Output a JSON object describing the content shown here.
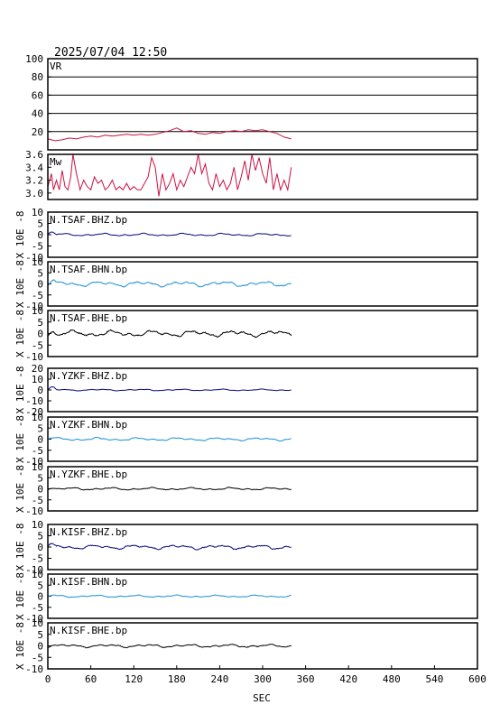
{
  "header": {
    "timestamp": "2025/07/04 12:50"
  },
  "chart_data": {
    "type": "line",
    "xlabel": "SEC",
    "xlim": [
      0,
      600
    ],
    "xticks": [
      0,
      60,
      120,
      180,
      240,
      300,
      360,
      420,
      480,
      540,
      600
    ],
    "xtick_labels": [
      "0",
      "60",
      "120",
      "180",
      "240",
      "300",
      "360",
      "420",
      "480",
      "540",
      "600"
    ],
    "panels": [
      {
        "name": "VR",
        "ylim": [
          0,
          100
        ],
        "yticks": [
          20,
          40,
          60,
          80,
          100
        ],
        "ytick_labels": [
          "20",
          "40",
          "60",
          "80",
          "100"
        ],
        "grid": true,
        "color": "#cc1144",
        "x": [
          0,
          10,
          20,
          30,
          40,
          50,
          60,
          70,
          80,
          90,
          100,
          110,
          120,
          130,
          140,
          150,
          160,
          170,
          180,
          190,
          200,
          210,
          220,
          230,
          240,
          250,
          260,
          270,
          280,
          290,
          300,
          310,
          320,
          330,
          340
        ],
        "y": [
          12,
          10,
          11,
          13,
          12,
          14,
          15,
          14,
          16,
          15,
          16,
          17,
          16,
          17,
          16,
          17,
          19,
          21,
          24,
          20,
          21,
          18,
          17,
          19,
          18,
          20,
          21,
          20,
          22,
          21,
          22,
          20,
          18,
          14,
          12
        ]
      },
      {
        "name": "Mw",
        "ylim": [
          2.9,
          3.6
        ],
        "yticks": [
          3.0,
          3.2,
          3.4,
          3.6
        ],
        "ytick_labels": [
          "3.0",
          "3.2",
          "3.4",
          "3.6"
        ],
        "grid": false,
        "color": "#cc1144",
        "x": [
          0,
          5,
          8,
          12,
          16,
          20,
          24,
          28,
          32,
          35,
          40,
          45,
          50,
          55,
          60,
          65,
          70,
          75,
          80,
          85,
          90,
          95,
          100,
          105,
          110,
          115,
          120,
          125,
          130,
          135,
          140,
          145,
          150,
          155,
          160,
          165,
          170,
          175,
          180,
          185,
          190,
          195,
          200,
          205,
          210,
          215,
          220,
          225,
          230,
          235,
          240,
          245,
          250,
          255,
          260,
          265,
          270,
          275,
          280,
          285,
          290,
          295,
          300,
          305,
          310,
          315,
          320,
          325,
          330,
          335,
          340
        ],
        "y": [
          3.1,
          3.3,
          3.05,
          3.2,
          3.05,
          3.35,
          3.1,
          3.05,
          3.25,
          3.6,
          3.3,
          3.05,
          3.2,
          3.1,
          3.05,
          3.25,
          3.15,
          3.2,
          3.05,
          3.1,
          3.2,
          3.05,
          3.1,
          3.05,
          3.15,
          3.05,
          3.1,
          3.05,
          3.05,
          3.15,
          3.25,
          3.55,
          3.4,
          2.95,
          3.3,
          3.05,
          3.15,
          3.3,
          3.05,
          3.2,
          3.1,
          3.25,
          3.4,
          3.3,
          3.6,
          3.3,
          3.45,
          3.15,
          3.05,
          3.3,
          3.1,
          3.2,
          3.05,
          3.15,
          3.4,
          3.05,
          3.25,
          3.5,
          3.2,
          3.6,
          3.35,
          3.55,
          3.3,
          3.15,
          3.55,
          3.05,
          3.3,
          3.05,
          3.2,
          3.05,
          3.4
        ]
      },
      {
        "name": "N.TSAF.BHZ.bp",
        "ylabel": "X 10E -8",
        "ylim": [
          -10,
          10
        ],
        "yticks": [
          -10,
          -5,
          0,
          5,
          10
        ],
        "ytick_labels": [
          "-10",
          "-5",
          "0",
          "5",
          "10"
        ],
        "color": "#0a0a80",
        "seed": 11,
        "amp": 0.6,
        "onset": 1.2
      },
      {
        "name": "N.TSAF.BHN.bp",
        "ylabel": "X 10E -8",
        "ylim": [
          -10,
          10
        ],
        "yticks": [
          -10,
          -5,
          0,
          5,
          10
        ],
        "ytick_labels": [
          "-10",
          "-5",
          "0",
          "5",
          "10"
        ],
        "color": "#1e90d6",
        "seed": 23,
        "amp": 1.2,
        "onset": 1.0
      },
      {
        "name": "N.TSAF.BHE.bp",
        "ylabel": "X 10E -8",
        "ylim": [
          -10,
          10
        ],
        "yticks": [
          -10,
          -5,
          0,
          5,
          10
        ],
        "ytick_labels": [
          "-10",
          "-5",
          "0",
          "5",
          "10"
        ],
        "color": "#000000",
        "seed": 37,
        "amp": 1.4,
        "onset": 0.8
      },
      {
        "name": "N.YZKF.BHZ.bp",
        "ylabel": "X 10E -8",
        "ylim": [
          -20,
          20
        ],
        "yticks": [
          -20,
          -10,
          0,
          10,
          20
        ],
        "ytick_labels": [
          "-20",
          "-10",
          "0",
          "10",
          "20"
        ],
        "color": "#0a0a80",
        "seed": 41,
        "amp": 0.8,
        "onset": 2.5
      },
      {
        "name": "N.YZKF.BHN.bp",
        "ylabel": "X 10E -8",
        "ylim": [
          -10,
          10
        ],
        "yticks": [
          -10,
          -5,
          0,
          5,
          10
        ],
        "ytick_labels": [
          "-10",
          "-5",
          "0",
          "5",
          "10"
        ],
        "color": "#1e90d6",
        "seed": 53,
        "amp": 0.7,
        "onset": 0.5
      },
      {
        "name": "N.YZKF.BHE.bp",
        "ylabel": "X 10E -8",
        "ylim": [
          -10,
          10
        ],
        "yticks": [
          -10,
          -5,
          0,
          5,
          10
        ],
        "ytick_labels": [
          "-10",
          "-5",
          "0",
          "5",
          "10"
        ],
        "color": "#000000",
        "seed": 67,
        "amp": 0.6,
        "onset": 0.5
      },
      {
        "name": "N.KISF.BHZ.bp",
        "ylabel": "X 10E -8",
        "ylim": [
          -10,
          10
        ],
        "yticks": [
          -10,
          -5,
          0,
          5,
          10
        ],
        "ytick_labels": [
          "-10",
          "-5",
          "0",
          "5",
          "10"
        ],
        "color": "#0a0a80",
        "seed": 71,
        "amp": 1.0,
        "onset": 0.6
      },
      {
        "name": "N.KISF.BHN.bp",
        "ylabel": "X 10E -8",
        "ylim": [
          -10,
          10
        ],
        "yticks": [
          -10,
          -5,
          0,
          5,
          10
        ],
        "ytick_labels": [
          "-10",
          "-5",
          "0",
          "5",
          "10"
        ],
        "color": "#1e90d6",
        "seed": 83,
        "amp": 0.5,
        "onset": 0.3
      },
      {
        "name": "N.KISF.BHE.bp",
        "ylabel": "X 10E -8",
        "ylim": [
          -10,
          10
        ],
        "yticks": [
          -10,
          -5,
          0,
          5,
          10
        ],
        "ytick_labels": [
          "-10",
          "-5",
          "0",
          "5",
          "10"
        ],
        "color": "#000000",
        "seed": 97,
        "amp": 0.7,
        "onset": 0.4
      }
    ]
  }
}
